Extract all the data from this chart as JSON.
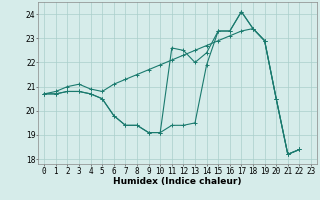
{
  "title": "",
  "xlabel": "Humidex (Indice chaleur)",
  "bg_color": "#d6ecea",
  "grid_color": "#aacfcb",
  "line_color": "#1a7a6e",
  "xlim": [
    -0.5,
    23.5
  ],
  "ylim": [
    17.8,
    24.5
  ],
  "yticks": [
    18,
    19,
    20,
    21,
    22,
    23,
    24
  ],
  "xticks": [
    0,
    1,
    2,
    3,
    4,
    5,
    6,
    7,
    8,
    9,
    10,
    11,
    12,
    13,
    14,
    15,
    16,
    17,
    18,
    19,
    20,
    21,
    22,
    23
  ],
  "series": [
    [
      20.7,
      20.7,
      20.8,
      20.8,
      20.7,
      20.5,
      19.8,
      19.4,
      19.4,
      19.1,
      19.1,
      19.4,
      19.4,
      19.5,
      21.9,
      23.3,
      23.3,
      24.1,
      23.4,
      22.9,
      20.5,
      18.2,
      18.4
    ],
    [
      20.7,
      20.7,
      20.8,
      20.8,
      20.7,
      20.5,
      19.8,
      19.4,
      19.4,
      19.1,
      19.1,
      22.6,
      22.5,
      22.0,
      22.4,
      23.3,
      23.3,
      24.1,
      23.4,
      22.9,
      20.5,
      18.2,
      18.4
    ],
    [
      20.7,
      20.8,
      21.0,
      21.1,
      20.9,
      20.8,
      21.1,
      21.3,
      21.5,
      21.7,
      21.9,
      22.1,
      22.3,
      22.5,
      22.7,
      22.9,
      23.1,
      23.3,
      23.4,
      22.9,
      20.5,
      18.2,
      18.4
    ]
  ],
  "marker": "+",
  "markersize": 3,
  "linewidth": 0.8,
  "xlabel_fontsize": 6.5,
  "tick_fontsize": 5.5
}
